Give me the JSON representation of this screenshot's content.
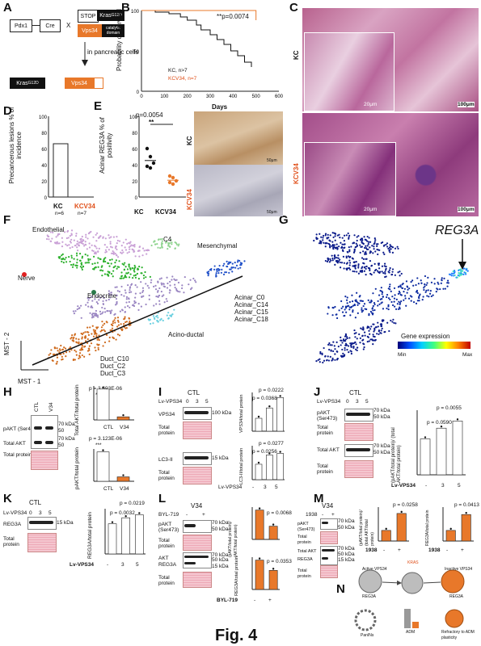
{
  "figure_title": "Fig. 4",
  "panels": {
    "A": "A",
    "B": "B",
    "C": "C",
    "D": "D",
    "E": "E",
    "F": "F",
    "G": "G",
    "H": "H",
    "I": "I",
    "J": "J",
    "K": "K",
    "L": "L",
    "M": "M",
    "N": "N"
  },
  "panelA": {
    "pdx1": "Pdx1",
    "cre": "Cre",
    "x": "X",
    "stop": "STOP",
    "kras": "Kras",
    "kras_sup": "G12D",
    "vps34": "Vps34",
    "catalytic": "catalytic domain",
    "in_cells": "in pancreatic cells"
  },
  "panelB": {
    "ylabel": "Probability of Survival",
    "xlabel": "Days",
    "pval": "**p=0.0074",
    "legend": [
      "KC, n>7",
      "KCV34, n=7"
    ],
    "yticks": [
      "100",
      "50",
      "0"
    ],
    "xticks": [
      "0",
      "100",
      "200",
      "300",
      "400",
      "500",
      "600"
    ]
  },
  "panelC": {
    "kc": "KC",
    "kcv34": "KCV34",
    "scale_small": "20μm",
    "scale_big": "100μm"
  },
  "panelD": {
    "ylabel": "Precancerous lesions % of incidence",
    "yticks": [
      "100",
      "80",
      "60",
      "40",
      "20",
      "0"
    ],
    "cat": [
      "KC",
      "KCV34"
    ],
    "n": [
      "n=6",
      "n=7"
    ]
  },
  "panelE": {
    "ylabel": "Acinar REG3A % of positivity",
    "pval": "p=0.0054",
    "stars": "**",
    "cat": [
      "KC",
      "KCV34"
    ],
    "yticks": [
      "100",
      "80",
      "60",
      "40",
      "20",
      "0"
    ],
    "kc": "KC",
    "kcv34": "KCV34",
    "scale": "50μm"
  },
  "panelF": {
    "clusters": [
      "Endothelial",
      "C4",
      "Mesenchymal",
      "Nerve",
      "Endocrine",
      "Acinar_C0",
      "Acinar_C14",
      "Acinar_C15",
      "Acinar_C18",
      "Acino-ductal",
      "Duct_C10",
      "Duct_C2",
      "Duct_C3"
    ],
    "xaxis": "MST - 1",
    "yaxis": "MST - 2"
  },
  "panelG": {
    "gene": "REG3A",
    "legend_title": "Gene expression",
    "min": "Min",
    "max": "Max"
  },
  "panelH": {
    "ctl": "CTL",
    "v34": "V34",
    "pakt": "pAKT (Ser473)",
    "total_akt": "Total AKT",
    "total_protein": "Total protein",
    "kda70": "70 kDa",
    "kda50": "50",
    "kda70b": "70 kDa",
    "kda50b": "50",
    "p1": "p = 3.693E-06",
    "p2": "p = 3.123E-06",
    "stars": "***",
    "y1": "Total AKT/total protein",
    "y2": "pAKT/total protein",
    "cat": [
      "CTL",
      "V34"
    ]
  },
  "panelI": {
    "ctl": "CTL",
    "lv": "Lv-VPS34",
    "doses": [
      "0",
      "3",
      "5"
    ],
    "vps34": "VPS34",
    "total_protein": "Total protein",
    "lc3": "LC3-II",
    "kda100": "100 kDa",
    "kda15": "15 kDa",
    "p1": "p = 0.0222",
    "p2": "p = 0.0368",
    "p3": "p = 0.0277",
    "p4": "p = 0.0256",
    "y1": "VPS34/total protein",
    "y2": "LC3-II/total protein",
    "xcat": [
      "-",
      "3",
      "5"
    ],
    "xlabel": "Lv-VPS34"
  },
  "panelJ": {
    "ctl": "CTL",
    "lv": "Lv-VPS34",
    "doses": [
      "0",
      "3",
      "5"
    ],
    "pakt": "pAKT (Ser473)",
    "total_protein": "Total protein",
    "total_akt": "Total AKT",
    "kda70": "70 kDa",
    "kda50": "50 kDa",
    "p1": "p = 0.0055",
    "p2": "p = 0.0590",
    "ylabel": "(pAKT/total protein)/ (total AKT/total protein)",
    "xcat": [
      "-",
      "3",
      "5"
    ],
    "xlabel": "Lv-VPS34"
  },
  "panelK": {
    "ctl": "CTL",
    "lv": "Lv-VPS34",
    "doses": [
      "0",
      "3",
      "5"
    ],
    "reg3a": "REG3A",
    "total_protein": "Total protein",
    "kda15": "15 kDa",
    "p1": "p = 0.0219",
    "p2": "p = 0.0032",
    "ylabel": "REG3A/total protein",
    "xcat": [
      "-",
      "3",
      "5"
    ],
    "xlabel": "Lv-VPS34"
  },
  "panelL": {
    "v34": "V34",
    "byl": "BYL-719",
    "signs": [
      "-",
      "+"
    ],
    "pakt": "pAKT (Ser473)",
    "total_protein": "Total protein",
    "akt": "AKT",
    "reg3a": "REG3A",
    "kda70": "70 kDa",
    "kda50": "50 kDa",
    "kda15": "15 kDa",
    "p1": "p = 0.0068",
    "p2": "p = 0.0353",
    "y1": "(pAKT/total protein)/ (AKT/total protein)",
    "y2": "REG3A/total protein",
    "xlabel": "BYL-719"
  },
  "panelM": {
    "v34": "V34",
    "inh": "1938",
    "signs": [
      "-",
      "+"
    ],
    "pakt": "pAKT (Ser473)",
    "total_protein": "Total protein",
    "total_akt": "Total AKT",
    "reg3a": "REG3A",
    "kda70": "70 kDa",
    "kda50": "50 kDa",
    "kda15": "15 kDa",
    "p1": "p = 0.0258",
    "p2": "p = 0.0413",
    "y1": "(pAKT/total protein)/ (total AKT/total protein)",
    "y2": "REG3A/total protein",
    "xlabel": "1938"
  },
  "panelN": {
    "active": "Active VPS34",
    "inactive": "Inactive VPS34",
    "kras": "KRAS",
    "reg3a": "REG3A",
    "panins": "PanINs",
    "adm": "ADM",
    "refractory": "Refractory to ADM plasticity"
  },
  "chart_data": [
    {
      "type": "line",
      "title": "",
      "xlabel": "Days",
      "ylabel": "Probability of Survival",
      "xlim": [
        0,
        600
      ],
      "ylim": [
        0,
        100
      ],
      "series": [
        {
          "name": "KC, n>7",
          "x": [
            0,
            60,
            120,
            170,
            200,
            240,
            260,
            300,
            330,
            360,
            390,
            420,
            450,
            480
          ],
          "y": [
            100,
            98,
            96,
            92,
            88,
            82,
            76,
            70,
            64,
            58,
            50,
            44,
            36,
            30
          ]
        },
        {
          "name": "KCV34, n=7",
          "x": [
            0,
            480,
            500
          ],
          "y": [
            100,
            100,
            88
          ]
        }
      ]
    },
    {
      "type": "bar",
      "title": "",
      "categories": [
        "KC",
        "KCV34"
      ],
      "values": [
        66,
        0
      ],
      "ylabel": "Precancerous lesions % of incidence",
      "ylim": [
        0,
        100
      ]
    },
    {
      "type": "scatter",
      "title": "",
      "categories": [
        "KC",
        "KCV34"
      ],
      "series": [
        {
          "name": "KC",
          "values": [
            60,
            50,
            42,
            38,
            36
          ]
        },
        {
          "name": "KCV34",
          "values": [
            26,
            24,
            20,
            18,
            16
          ]
        }
      ],
      "ylabel": "Acinar REG3A % of positivity",
      "ylim": [
        0,
        100
      ]
    }
  ]
}
